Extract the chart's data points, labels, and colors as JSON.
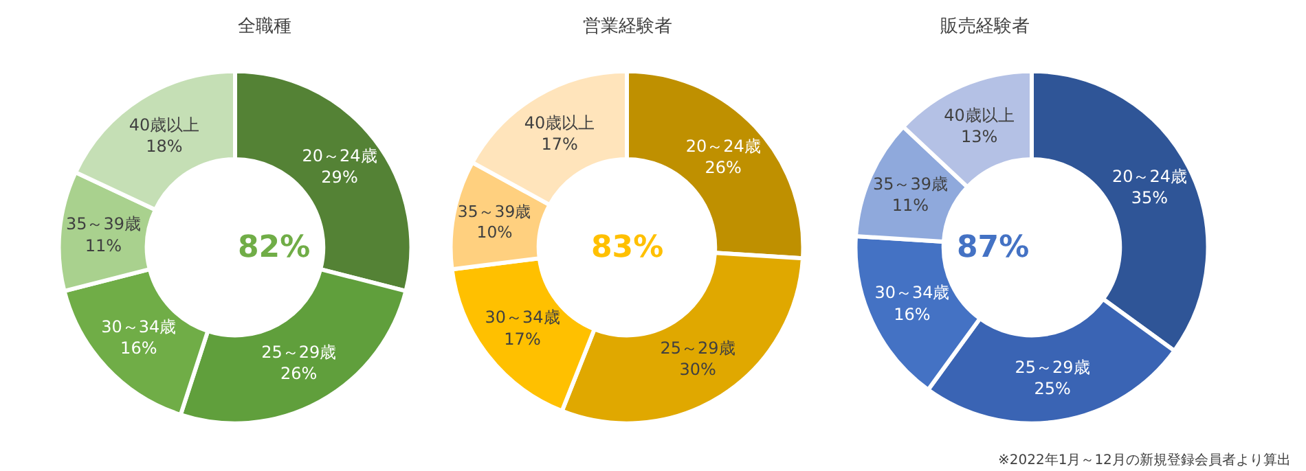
{
  "chart_data": [
    {
      "type": "donut",
      "title": "全職種",
      "categories": [
        "20～24歳",
        "25～29歳",
        "30～34歳",
        "35～39歳",
        "40歳以上"
      ],
      "values": [
        29,
        26,
        16,
        11,
        18
      ],
      "value_labels": [
        "29%",
        "26%",
        "16%",
        "11%",
        "18%"
      ],
      "colors": [
        "#548235",
        "#609f3c",
        "#70ad47",
        "#a9d18e",
        "#c5dfb5"
      ],
      "annotations": [
        "82%"
      ]
    },
    {
      "type": "donut",
      "title": "営業経験者",
      "categories": [
        "20～24歳",
        "25～29歳",
        "30～34歳",
        "35～39歳",
        "40歳以上"
      ],
      "values": [
        26,
        30,
        17,
        10,
        17
      ],
      "value_labels": [
        "26%",
        "30%",
        "17%",
        "10%",
        "17%"
      ],
      "colors": [
        "#bf9000",
        "#e0a800",
        "#ffc000",
        "#ffd07f",
        "#ffe4bb"
      ],
      "annotations": [
        "83%"
      ]
    },
    {
      "type": "donut",
      "title": "販売経験者",
      "categories": [
        "20～24歳",
        "25～29歳",
        "30～34歳",
        "35～39歳",
        "40歳以上"
      ],
      "values": [
        35,
        25,
        16,
        11,
        13
      ],
      "value_labels": [
        "35%",
        "25%",
        "16%",
        "11%",
        "13%"
      ],
      "colors": [
        "#2f5597",
        "#3a64b4",
        "#4472c4",
        "#8fa9dc",
        "#b4c1e5"
      ],
      "annotations": [
        "87%",
        "※2022年1月～12月の新規登録会員者より算出"
      ]
    }
  ]
}
